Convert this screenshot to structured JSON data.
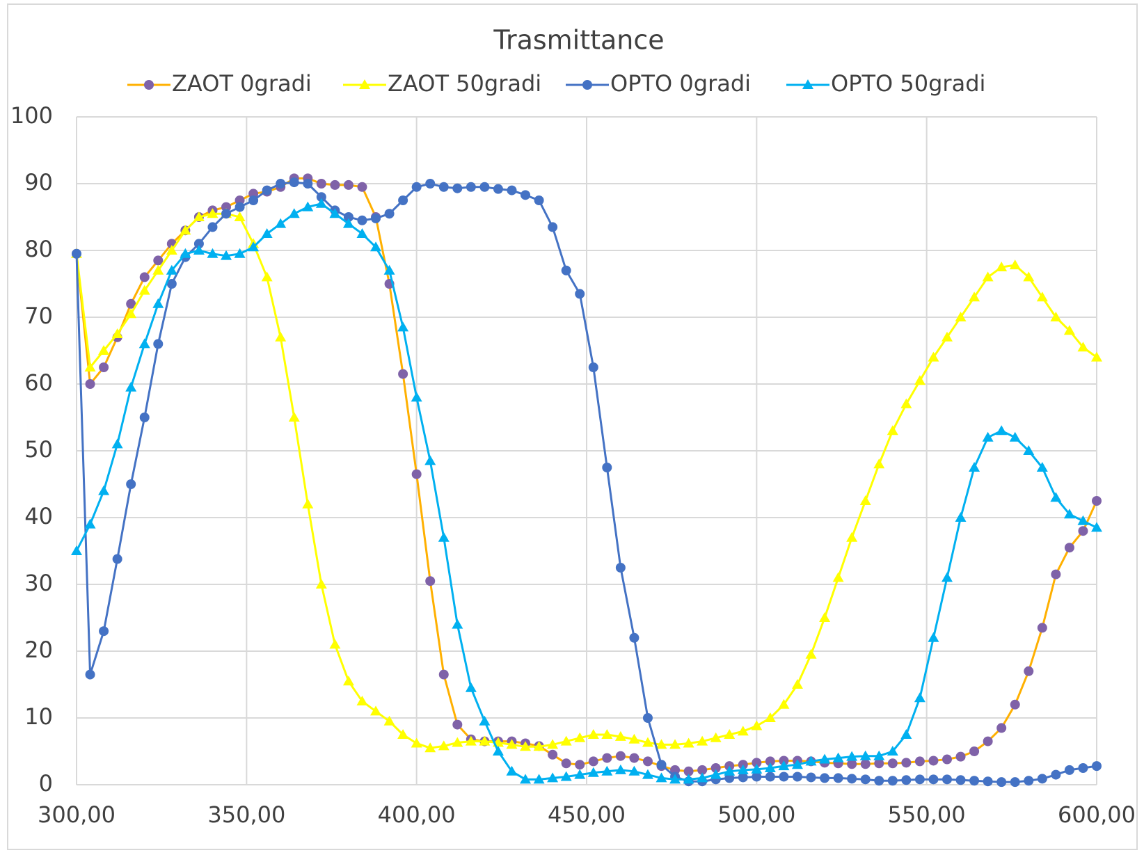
{
  "chart_data": {
    "type": "line",
    "title": "Trasmittance",
    "x": [
      300,
      304,
      308,
      312,
      316,
      320,
      324,
      328,
      332,
      336,
      340,
      344,
      348,
      352,
      356,
      360,
      364,
      368,
      372,
      376,
      380,
      384,
      388,
      392,
      396,
      400,
      404,
      408,
      412,
      416,
      420,
      424,
      428,
      432,
      436,
      440,
      444,
      448,
      452,
      456,
      460,
      464,
      468,
      472,
      476,
      480,
      484,
      488,
      492,
      496,
      500,
      504,
      508,
      512,
      516,
      520,
      524,
      528,
      532,
      536,
      540,
      544,
      548,
      552,
      556,
      560,
      564,
      568,
      572,
      576,
      580,
      584,
      588,
      592,
      596,
      600
    ],
    "series": [
      {
        "name": "ZAOT 0gradi",
        "color": "#ffb000",
        "marker_color": "#7f62a8",
        "marker": "circle",
        "values": [
          79.5,
          60,
          62.5,
          67,
          72,
          76,
          78.5,
          81,
          83,
          85,
          86,
          86.5,
          87.5,
          88.5,
          88.8,
          89.5,
          90.8,
          90.8,
          90,
          89.8,
          89.8,
          89.5,
          85,
          75,
          61.5,
          46.5,
          30.5,
          16.5,
          9,
          6.8,
          6.5,
          6.5,
          6.5,
          6.2,
          5.8,
          4.5,
          3.2,
          3,
          3.5,
          4,
          4.3,
          4,
          3.5,
          2.8,
          2.2,
          2,
          2.2,
          2.5,
          2.8,
          3,
          3.3,
          3.5,
          3.6,
          3.6,
          3.5,
          3.3,
          3.2,
          3.1,
          3.1,
          3.2,
          3.2,
          3.3,
          3.5,
          3.6,
          3.8,
          4.2,
          5,
          6.5,
          8.5,
          12,
          17,
          23.5,
          31.5,
          35.5,
          38,
          42.5
        ]
      },
      {
        "name": "ZAOT 50gradi",
        "color": "#ffff00",
        "marker_color": "#ffff00",
        "marker": "triangle",
        "values": [
          79.5,
          62.5,
          65,
          67.5,
          70.5,
          74,
          77,
          80,
          83,
          85,
          85.5,
          85.5,
          85,
          81,
          76,
          67,
          55,
          42,
          30,
          21,
          15.5,
          12.5,
          11,
          9.5,
          7.5,
          6.2,
          5.5,
          5.8,
          6.3,
          6.5,
          6.5,
          6.3,
          6,
          5.7,
          5.7,
          6,
          6.5,
          7,
          7.5,
          7.5,
          7.2,
          6.8,
          6.3,
          6,
          6,
          6.2,
          6.5,
          7,
          7.5,
          8,
          8.8,
          10,
          12,
          15,
          19.5,
          25,
          31,
          37,
          42.5,
          48,
          53,
          57,
          60.5,
          64,
          67,
          70,
          73,
          76,
          77.5,
          77.8,
          76,
          73,
          70,
          68,
          65.5,
          64
        ]
      },
      {
        "name": "OPTO 0gradi",
        "color": "#4472c4",
        "marker_color": "#4472c4",
        "marker": "circle",
        "values": [
          79.5,
          16.5,
          23,
          33.8,
          45,
          55,
          66,
          75,
          79,
          81,
          83.5,
          85.5,
          86.5,
          87.5,
          89,
          90,
          90.2,
          90,
          88,
          86,
          85,
          84.5,
          84.8,
          85.5,
          87.5,
          89.5,
          90,
          89.5,
          89.3,
          89.5,
          89.5,
          89.2,
          89,
          88.3,
          87.5,
          83.5,
          77,
          73.5,
          62.5,
          47.5,
          32.5,
          22,
          10,
          3,
          1.2,
          0.5,
          0.5,
          0.8,
          1,
          1.1,
          1.2,
          1.2,
          1.2,
          1.2,
          1.1,
          1,
          1,
          0.9,
          0.8,
          0.6,
          0.6,
          0.7,
          0.8,
          0.8,
          0.8,
          0.7,
          0.6,
          0.5,
          0.4,
          0.4,
          0.6,
          0.9,
          1.5,
          2.2,
          2.5,
          2.8
        ]
      },
      {
        "name": "OPTO 50gradi",
        "color": "#00b0f0",
        "marker_color": "#00b0f0",
        "marker": "triangle",
        "values": [
          35,
          39,
          44,
          51,
          59.5,
          66,
          72,
          77,
          79.5,
          80,
          79.5,
          79.2,
          79.5,
          80.5,
          82.5,
          84,
          85.5,
          86.5,
          87,
          85.5,
          84,
          82.5,
          80.5,
          77,
          68.5,
          58,
          48.5,
          37,
          24,
          14.5,
          9.5,
          5,
          2,
          0.8,
          0.8,
          1,
          1.2,
          1.5,
          1.8,
          2,
          2.2,
          2,
          1.5,
          1,
          0.8,
          0.8,
          1,
          1.5,
          2,
          2.2,
          2.3,
          2.5,
          2.8,
          3,
          3.5,
          3.8,
          4,
          4.2,
          4.3,
          4.3,
          5,
          7.5,
          13,
          22,
          31,
          40,
          47.5,
          52,
          53,
          52,
          50,
          47.5,
          43,
          40.5,
          39.5,
          38.5
        ]
      }
    ],
    "xlim": [
      300,
      600
    ],
    "xticks": [
      {
        "value": 300,
        "label": "300,00"
      },
      {
        "value": 350,
        "label": "350,00"
      },
      {
        "value": 400,
        "label": "400,00"
      },
      {
        "value": 450,
        "label": "450,00"
      },
      {
        "value": 500,
        "label": "500,00"
      },
      {
        "value": 550,
        "label": "550,00"
      },
      {
        "value": 600,
        "label": "600,00"
      }
    ],
    "ylim": [
      0,
      100
    ],
    "yticks": [
      0,
      10,
      20,
      30,
      40,
      50,
      60,
      70,
      80,
      90,
      100
    ],
    "grid": true,
    "legend": "top"
  }
}
